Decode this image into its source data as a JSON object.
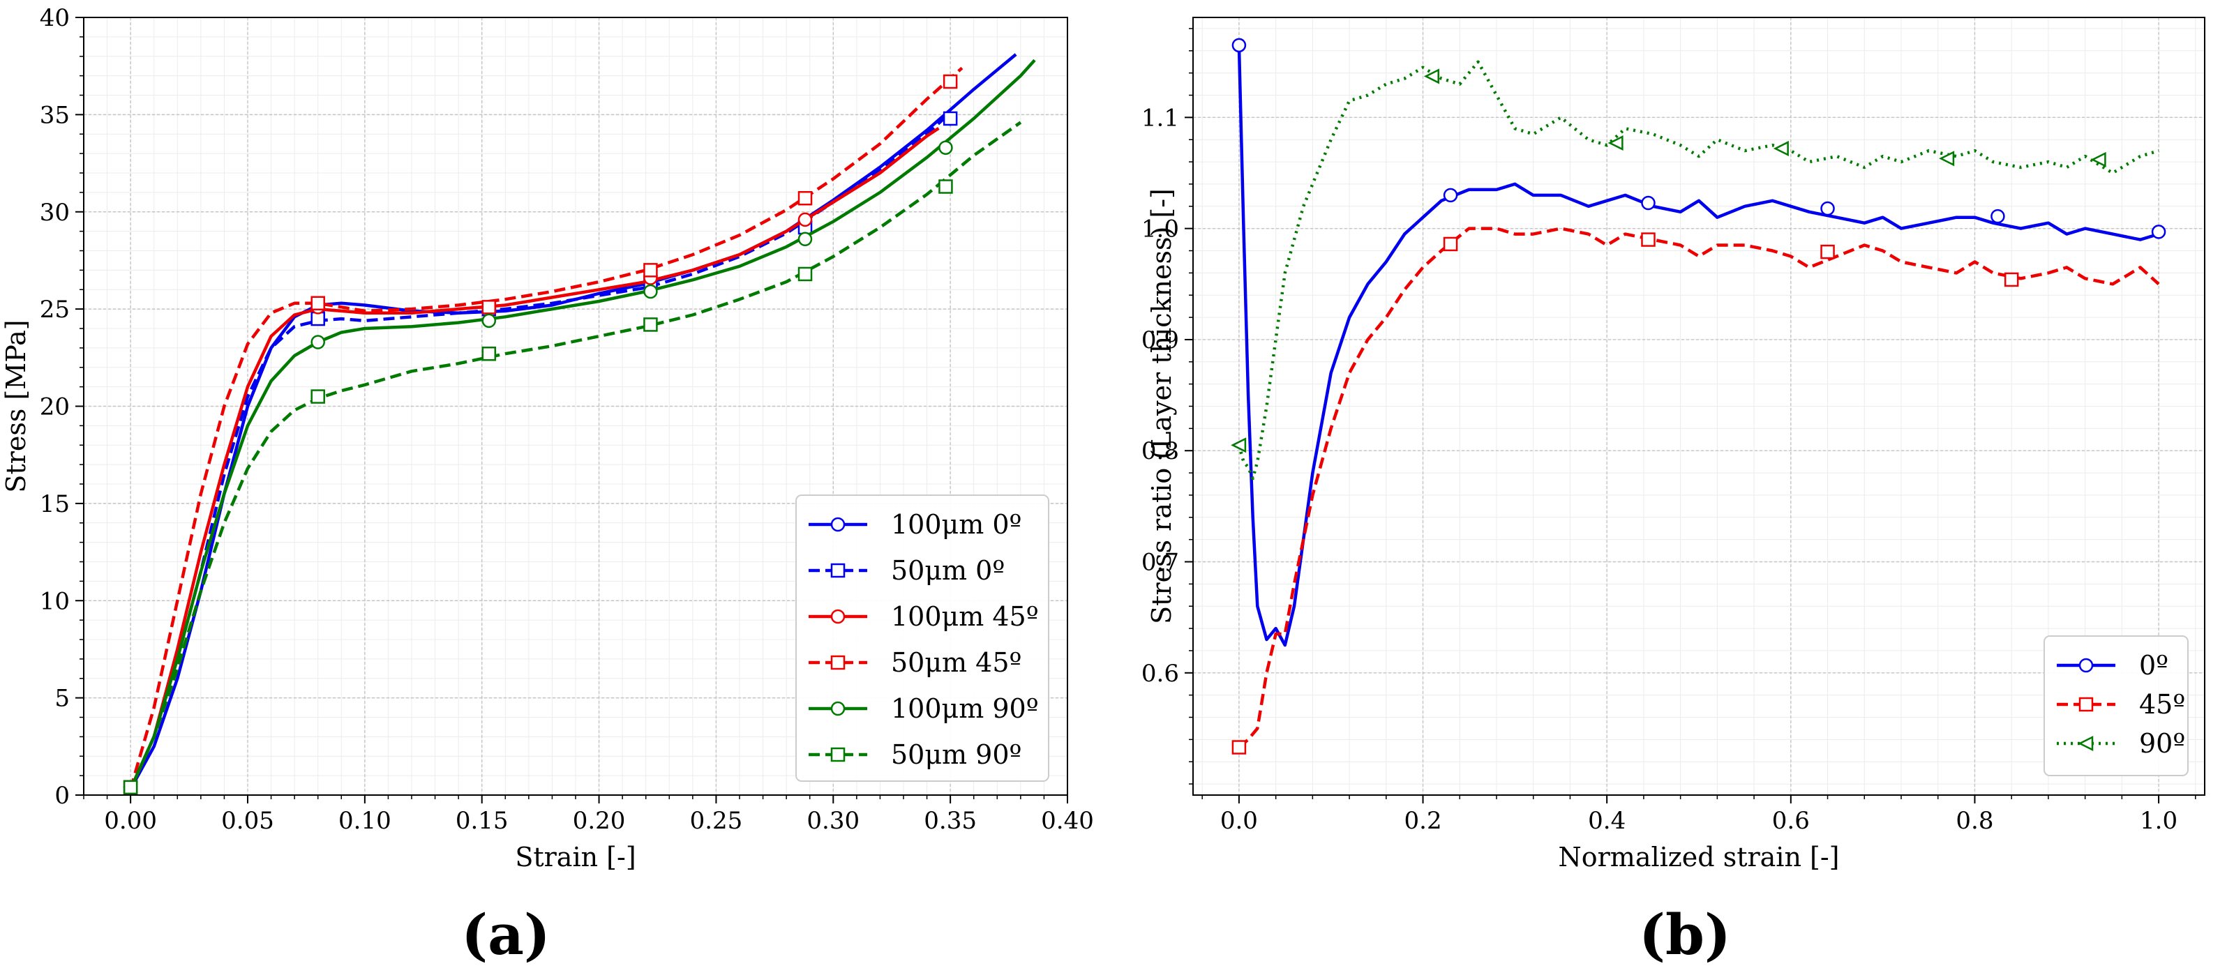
{
  "chart_data": [
    {
      "id": "a",
      "type": "line",
      "panel_label": "(a)",
      "title": "",
      "xlabel": "Strain [-]",
      "ylabel": "Stress [MPa]",
      "xlim": [
        -0.02,
        0.4
      ],
      "ylim": [
        0,
        40
      ],
      "xticks": [
        0.0,
        0.05,
        0.1,
        0.15,
        0.2,
        0.25,
        0.3,
        0.35,
        0.4
      ],
      "xtick_labels": [
        "0.00",
        "0.05",
        "0.10",
        "0.15",
        "0.20",
        "0.25",
        "0.30",
        "0.35",
        "0.40"
      ],
      "yticks": [
        0,
        5,
        10,
        15,
        20,
        25,
        30,
        35,
        40
      ],
      "ytick_labels": [
        "0",
        "5",
        "10",
        "15",
        "20",
        "25",
        "30",
        "35",
        "40"
      ],
      "grid": true,
      "legend_position": "bottom-right",
      "series": [
        {
          "name": "100μm 0º",
          "color": "#0000ee",
          "dash": "solid",
          "marker": "circle",
          "x": [
            0.0,
            0.01,
            0.02,
            0.03,
            0.04,
            0.05,
            0.06,
            0.07,
            0.08,
            0.09,
            0.1,
            0.12,
            0.14,
            0.16,
            0.18,
            0.2,
            0.22,
            0.24,
            0.26,
            0.28,
            0.3,
            0.32,
            0.34,
            0.36,
            0.378
          ],
          "y": [
            0.3,
            2.5,
            6.0,
            10.5,
            15.5,
            20.0,
            23.0,
            24.6,
            25.2,
            25.3,
            25.2,
            24.9,
            24.8,
            24.9,
            25.2,
            25.8,
            26.3,
            27.0,
            27.8,
            29.0,
            30.6,
            32.3,
            34.2,
            36.3,
            38.1
          ],
          "marker_x": [
            0.0,
            0.08,
            0.153,
            0.222,
            0.288,
            0.35
          ],
          "marker_y": [
            0.4,
            25.0,
            24.9,
            26.2,
            29.5,
            34.8
          ]
        },
        {
          "name": "50μm 0º",
          "color": "#0000ee",
          "dash": "dashed",
          "marker": "square",
          "x": [
            0.0,
            0.01,
            0.02,
            0.03,
            0.04,
            0.05,
            0.06,
            0.07,
            0.08,
            0.09,
            0.1,
            0.12,
            0.14,
            0.16,
            0.18,
            0.2,
            0.22,
            0.24,
            0.26,
            0.28,
            0.3,
            0.32,
            0.34,
            0.35
          ],
          "y": [
            0.3,
            3.0,
            7.0,
            11.5,
            16.5,
            20.5,
            23.0,
            24.1,
            24.4,
            24.5,
            24.4,
            24.6,
            24.8,
            25.0,
            25.3,
            25.7,
            26.1,
            26.8,
            27.7,
            28.9,
            30.5,
            32.2,
            34.0,
            35.1
          ],
          "marker_x": [
            0.0,
            0.08,
            0.153,
            0.222,
            0.288,
            0.35
          ],
          "marker_y": [
            0.4,
            24.5,
            25.0,
            26.4,
            29.2,
            34.8
          ]
        },
        {
          "name": "100μm 45º",
          "color": "#ee0000",
          "dash": "solid",
          "marker": "circle",
          "x": [
            0.0,
            0.01,
            0.02,
            0.03,
            0.04,
            0.05,
            0.06,
            0.07,
            0.08,
            0.09,
            0.1,
            0.12,
            0.14,
            0.16,
            0.18,
            0.2,
            0.22,
            0.24,
            0.26,
            0.28,
            0.3,
            0.32,
            0.34,
            0.345
          ],
          "y": [
            0.3,
            3.0,
            7.5,
            12.5,
            17.0,
            21.0,
            23.6,
            24.7,
            25.0,
            24.9,
            24.8,
            24.8,
            25.0,
            25.2,
            25.6,
            26.0,
            26.4,
            27.0,
            27.8,
            29.0,
            30.5,
            32.0,
            33.9,
            34.3
          ],
          "marker_x": [
            0.0,
            0.08,
            0.153,
            0.222,
            0.288
          ],
          "marker_y": [
            0.4,
            25.1,
            25.1,
            26.6,
            29.6
          ]
        },
        {
          "name": "50μm 45º",
          "color": "#ee0000",
          "dash": "dashed",
          "marker": "square",
          "x": [
            0.0,
            0.01,
            0.02,
            0.03,
            0.04,
            0.05,
            0.06,
            0.07,
            0.08,
            0.09,
            0.1,
            0.12,
            0.14,
            0.16,
            0.18,
            0.2,
            0.22,
            0.24,
            0.26,
            0.28,
            0.3,
            0.32,
            0.34,
            0.355
          ],
          "y": [
            0.3,
            4.5,
            10.0,
            15.5,
            20.0,
            23.2,
            24.8,
            25.3,
            25.3,
            25.1,
            24.9,
            25.0,
            25.2,
            25.5,
            25.9,
            26.4,
            27.0,
            27.8,
            28.8,
            30.1,
            31.7,
            33.5,
            35.8,
            37.4
          ],
          "marker_x": [
            0.0,
            0.08,
            0.153,
            0.222,
            0.288,
            0.35
          ],
          "marker_y": [
            0.4,
            25.3,
            25.1,
            27.0,
            30.7,
            36.7
          ]
        },
        {
          "name": "100μm 90º",
          "color": "#007a00",
          "dash": "solid",
          "marker": "circle",
          "x": [
            0.0,
            0.01,
            0.02,
            0.03,
            0.04,
            0.05,
            0.06,
            0.07,
            0.08,
            0.09,
            0.1,
            0.12,
            0.14,
            0.16,
            0.18,
            0.2,
            0.22,
            0.24,
            0.26,
            0.28,
            0.3,
            0.32,
            0.34,
            0.36,
            0.38,
            0.386
          ],
          "y": [
            0.3,
            3.0,
            7.0,
            11.5,
            15.5,
            19.0,
            21.3,
            22.6,
            23.3,
            23.8,
            24.0,
            24.1,
            24.3,
            24.6,
            25.0,
            25.4,
            25.9,
            26.5,
            27.2,
            28.2,
            29.5,
            31.0,
            32.8,
            34.8,
            37.0,
            37.8
          ],
          "marker_x": [
            0.0,
            0.08,
            0.153,
            0.222,
            0.288,
            0.348
          ],
          "marker_y": [
            0.4,
            23.3,
            24.4,
            25.9,
            28.6,
            33.3
          ]
        },
        {
          "name": "50μm 90º",
          "color": "#007a00",
          "dash": "dashed",
          "marker": "square",
          "x": [
            0.0,
            0.01,
            0.02,
            0.03,
            0.04,
            0.05,
            0.06,
            0.07,
            0.08,
            0.09,
            0.1,
            0.12,
            0.14,
            0.16,
            0.18,
            0.2,
            0.22,
            0.24,
            0.26,
            0.28,
            0.3,
            0.32,
            0.34,
            0.36,
            0.38
          ],
          "y": [
            0.3,
            3.0,
            6.5,
            10.5,
            14.0,
            16.8,
            18.7,
            19.8,
            20.4,
            20.8,
            21.1,
            21.8,
            22.2,
            22.7,
            23.1,
            23.6,
            24.1,
            24.7,
            25.5,
            26.4,
            27.7,
            29.2,
            30.9,
            32.9,
            34.6
          ],
          "marker_x": [
            0.0,
            0.08,
            0.153,
            0.222,
            0.288,
            0.348
          ],
          "marker_y": [
            0.4,
            20.5,
            22.7,
            24.2,
            26.8,
            31.3
          ]
        }
      ]
    },
    {
      "id": "b",
      "type": "line",
      "panel_label": "(b)",
      "title": "",
      "xlabel": "Normalized strain [-]",
      "ylabel": "Stress ratio (Layer thickness) [-]",
      "xlim": [
        -0.05,
        1.05
      ],
      "ylim": [
        0.49,
        1.19
      ],
      "xticks": [
        0.0,
        0.2,
        0.4,
        0.6,
        0.8,
        1.0
      ],
      "xtick_labels": [
        "0.0",
        "0.2",
        "0.4",
        "0.6",
        "0.8",
        "1.0"
      ],
      "yticks": [
        0.6,
        0.7,
        0.8,
        0.9,
        1.0,
        1.1
      ],
      "ytick_labels": [
        "0.6",
        "0.7",
        "0.8",
        "0.9",
        "1.0",
        "1.1"
      ],
      "grid": true,
      "legend_position": "bottom-right",
      "series": [
        {
          "name": "0º",
          "color": "#0000ee",
          "dash": "solid",
          "marker": "circle",
          "x": [
            0.0,
            0.005,
            0.01,
            0.015,
            0.02,
            0.03,
            0.04,
            0.05,
            0.06,
            0.07,
            0.08,
            0.1,
            0.12,
            0.14,
            0.16,
            0.18,
            0.2,
            0.22,
            0.25,
            0.28,
            0.3,
            0.32,
            0.35,
            0.38,
            0.4,
            0.42,
            0.45,
            0.48,
            0.5,
            0.52,
            0.55,
            0.58,
            0.6,
            0.62,
            0.65,
            0.68,
            0.7,
            0.72,
            0.75,
            0.78,
            0.8,
            0.82,
            0.85,
            0.88,
            0.9,
            0.92,
            0.95,
            0.98,
            1.0
          ],
          "y": [
            1.165,
            1.0,
            0.85,
            0.74,
            0.66,
            0.63,
            0.64,
            0.625,
            0.66,
            0.72,
            0.78,
            0.87,
            0.92,
            0.95,
            0.97,
            0.995,
            1.01,
            1.025,
            1.035,
            1.035,
            1.04,
            1.03,
            1.03,
            1.02,
            1.025,
            1.03,
            1.02,
            1.015,
            1.025,
            1.01,
            1.02,
            1.025,
            1.02,
            1.015,
            1.01,
            1.005,
            1.01,
            1.0,
            1.005,
            1.01,
            1.01,
            1.005,
            1.0,
            1.005,
            0.995,
            1.0,
            0.995,
            0.99,
            0.995
          ],
          "marker_x": [
            0.0,
            0.23,
            0.445,
            0.64,
            0.825,
            1.0
          ],
          "marker_y": [
            1.165,
            1.03,
            1.023,
            1.018,
            1.011,
            0.997
          ]
        },
        {
          "name": "45º",
          "color": "#ee0000",
          "dash": "dashed",
          "marker": "square",
          "x": [
            0.0,
            0.01,
            0.02,
            0.03,
            0.04,
            0.05,
            0.06,
            0.07,
            0.08,
            0.1,
            0.12,
            0.14,
            0.16,
            0.18,
            0.2,
            0.22,
            0.25,
            0.28,
            0.3,
            0.32,
            0.35,
            0.38,
            0.4,
            0.42,
            0.45,
            0.48,
            0.5,
            0.52,
            0.55,
            0.58,
            0.6,
            0.62,
            0.65,
            0.68,
            0.7,
            0.72,
            0.75,
            0.78,
            0.8,
            0.82,
            0.85,
            0.88,
            0.9,
            0.92,
            0.95,
            0.98,
            1.0
          ],
          "y": [
            0.533,
            0.54,
            0.55,
            0.6,
            0.635,
            0.635,
            0.68,
            0.72,
            0.76,
            0.82,
            0.87,
            0.9,
            0.92,
            0.945,
            0.965,
            0.98,
            1.0,
            1.0,
            0.995,
            0.995,
            1.0,
            0.995,
            0.985,
            0.995,
            0.99,
            0.985,
            0.975,
            0.985,
            0.985,
            0.98,
            0.975,
            0.965,
            0.975,
            0.985,
            0.98,
            0.97,
            0.965,
            0.96,
            0.97,
            0.96,
            0.955,
            0.96,
            0.965,
            0.955,
            0.95,
            0.965,
            0.95
          ],
          "marker_x": [
            0.0,
            0.23,
            0.445,
            0.64,
            0.84
          ],
          "marker_y": [
            0.533,
            0.986,
            0.99,
            0.979,
            0.954
          ]
        },
        {
          "name": "90º",
          "color": "#007a00",
          "dash": "dotted",
          "marker": "triangle-left",
          "x": [
            0.0,
            0.005,
            0.01,
            0.015,
            0.02,
            0.03,
            0.04,
            0.05,
            0.06,
            0.07,
            0.08,
            0.1,
            0.12,
            0.14,
            0.16,
            0.18,
            0.2,
            0.22,
            0.24,
            0.26,
            0.28,
            0.3,
            0.32,
            0.35,
            0.38,
            0.4,
            0.42,
            0.45,
            0.48,
            0.5,
            0.52,
            0.55,
            0.58,
            0.6,
            0.62,
            0.65,
            0.68,
            0.7,
            0.72,
            0.75,
            0.78,
            0.8,
            0.82,
            0.85,
            0.88,
            0.9,
            0.92,
            0.95,
            0.98,
            1.0
          ],
          "y": [
            0.805,
            0.79,
            0.785,
            0.775,
            0.79,
            0.84,
            0.9,
            0.96,
            0.99,
            1.02,
            1.04,
            1.08,
            1.115,
            1.12,
            1.13,
            1.135,
            1.145,
            1.135,
            1.13,
            1.15,
            1.12,
            1.09,
            1.085,
            1.1,
            1.08,
            1.075,
            1.09,
            1.085,
            1.075,
            1.065,
            1.08,
            1.07,
            1.075,
            1.07,
            1.06,
            1.065,
            1.055,
            1.065,
            1.06,
            1.07,
            1.065,
            1.07,
            1.06,
            1.055,
            1.06,
            1.055,
            1.065,
            1.05,
            1.065,
            1.07
          ],
          "marker_x": [
            0.0,
            0.21,
            0.41,
            0.59,
            0.77,
            0.935
          ],
          "marker_y": [
            0.805,
            1.137,
            1.077,
            1.072,
            1.063,
            1.062
          ]
        }
      ]
    }
  ]
}
